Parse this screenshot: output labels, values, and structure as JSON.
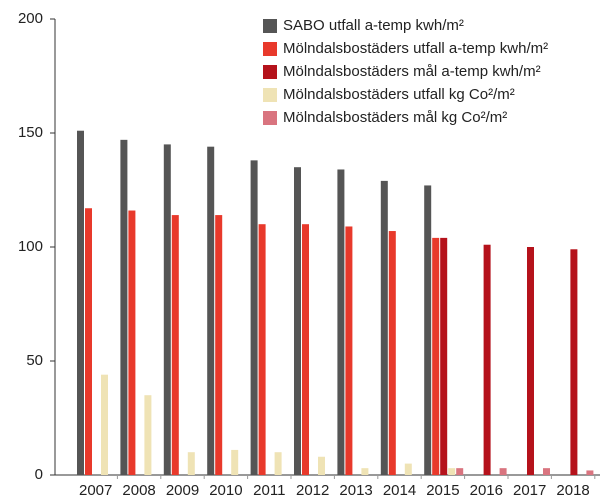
{
  "chart_data": {
    "type": "bar",
    "categories": [
      "2007",
      "2008",
      "2009",
      "2010",
      "2011",
      "2012",
      "2013",
      "2014",
      "2015",
      "2016",
      "2017",
      "2018"
    ],
    "series": [
      {
        "name": "SABO utfall a-temp kwh/m²",
        "color": "#555555",
        "values": [
          151,
          147,
          145,
          144,
          138,
          135,
          134,
          129,
          127,
          null,
          null,
          null
        ]
      },
      {
        "name": "Mölndalsbostäders utfall a-temp kwh/m²",
        "color": "#e8392b",
        "values": [
          117,
          116,
          114,
          114,
          110,
          110,
          109,
          107,
          104,
          null,
          null,
          null
        ]
      },
      {
        "name": "Mölndalsbostäders mål a-temp kwh/m²",
        "color": "#b5121b",
        "values": [
          null,
          null,
          null,
          null,
          null,
          null,
          null,
          null,
          104,
          101,
          100,
          99
        ]
      },
      {
        "name": "Mölndalsbostäders utfall kg Co²/m²",
        "color": "#efe3b5",
        "values": [
          44,
          35,
          10,
          11,
          10,
          8,
          3,
          5,
          3,
          null,
          null,
          null
        ]
      },
      {
        "name": "Mölndalsbostäders mål kg Co²/m²",
        "color": "#d9747f",
        "values": [
          null,
          null,
          null,
          null,
          null,
          null,
          null,
          null,
          3,
          3,
          3,
          2
        ]
      }
    ],
    "ylim": [
      0,
      200
    ],
    "yticks": [
      0,
      50,
      100,
      150,
      200
    ],
    "grid": false,
    "legend": "top-right"
  }
}
